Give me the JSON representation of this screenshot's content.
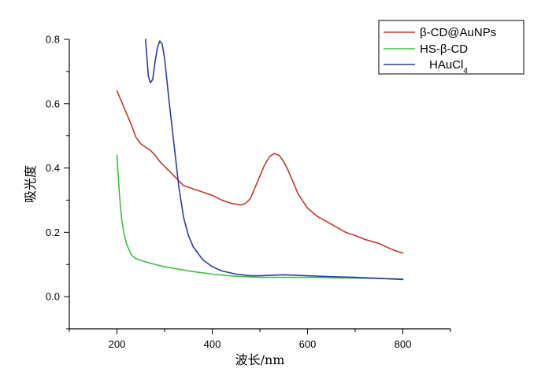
{
  "chart_data": {
    "type": "line",
    "title": "",
    "xlabel": "波长/nm",
    "ylabel": "吸光度",
    "xlim": [
      100,
      900
    ],
    "ylim": [
      -0.1,
      0.8
    ],
    "x_ticks": [
      200,
      400,
      600,
      800
    ],
    "y_ticks": [
      0.0,
      0.2,
      0.4,
      0.6,
      0.8
    ],
    "x_tick_labels": [
      "200",
      "400",
      "600",
      "800"
    ],
    "y_tick_labels": [
      "0.0",
      "0.2",
      "0.4",
      "0.6",
      "0.8"
    ],
    "grid": false,
    "legend_position": "top-right",
    "series": [
      {
        "name": "β-CD@AuNPs",
        "color": "#c0392b",
        "x": [
          200,
          210,
          220,
          230,
          240,
          250,
          260,
          270,
          280,
          290,
          300,
          320,
          340,
          360,
          380,
          400,
          420,
          440,
          460,
          470,
          480,
          490,
          500,
          510,
          520,
          530,
          540,
          550,
          560,
          570,
          580,
          600,
          620,
          650,
          680,
          700,
          720,
          750,
          780,
          800
        ],
        "y": [
          0.64,
          0.605,
          0.57,
          0.535,
          0.495,
          0.475,
          0.465,
          0.455,
          0.44,
          0.42,
          0.405,
          0.375,
          0.345,
          0.335,
          0.325,
          0.315,
          0.3,
          0.29,
          0.285,
          0.29,
          0.305,
          0.34,
          0.375,
          0.41,
          0.435,
          0.445,
          0.44,
          0.42,
          0.39,
          0.355,
          0.32,
          0.275,
          0.25,
          0.225,
          0.2,
          0.19,
          0.178,
          0.165,
          0.145,
          0.135
        ]
      },
      {
        "name": "HS-β-CD",
        "color": "#3fbf3f",
        "x": [
          200,
          205,
          210,
          215,
          220,
          230,
          240,
          260,
          280,
          300,
          350,
          400,
          450,
          500,
          600,
          700,
          800
        ],
        "y": [
          0.44,
          0.32,
          0.24,
          0.195,
          0.165,
          0.13,
          0.118,
          0.108,
          0.1,
          0.093,
          0.08,
          0.07,
          0.063,
          0.06,
          0.06,
          0.058,
          0.055
        ]
      },
      {
        "name": "HAuCl4",
        "color": "#2e3a9e",
        "x": [
          260,
          263,
          266,
          270,
          275,
          280,
          285,
          290,
          295,
          300,
          305,
          310,
          320,
          330,
          340,
          350,
          360,
          380,
          400,
          420,
          450,
          480,
          500,
          550,
          600,
          650,
          700,
          750,
          800
        ],
        "y": [
          0.8,
          0.74,
          0.685,
          0.665,
          0.675,
          0.73,
          0.775,
          0.795,
          0.785,
          0.74,
          0.67,
          0.6,
          0.47,
          0.34,
          0.245,
          0.19,
          0.155,
          0.115,
          0.093,
          0.08,
          0.07,
          0.065,
          0.065,
          0.068,
          0.065,
          0.062,
          0.06,
          0.057,
          0.053
        ]
      }
    ]
  }
}
